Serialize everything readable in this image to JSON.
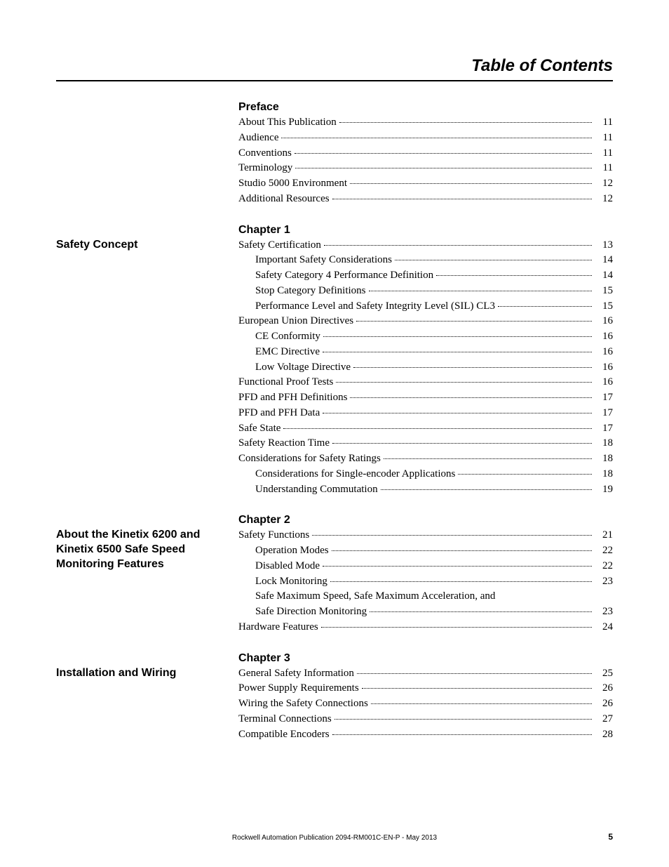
{
  "page_title": "Table of Contents",
  "sections": [
    {
      "heading": "Preface",
      "side": "",
      "entries": [
        {
          "label": "About This Publication",
          "page": "11",
          "indent": 0
        },
        {
          "label": "Audience",
          "page": "11",
          "indent": 0
        },
        {
          "label": "Conventions",
          "page": "11",
          "indent": 0
        },
        {
          "label": "Terminology",
          "page": "11",
          "indent": 0
        },
        {
          "label": "Studio 5000 Environment",
          "page": "12",
          "indent": 0
        },
        {
          "label": "Additional Resources",
          "page": "12",
          "indent": 0
        }
      ]
    },
    {
      "heading": "Chapter 1",
      "side": "Safety Concept",
      "entries": [
        {
          "label": "Safety Certification",
          "page": "13",
          "indent": 0
        },
        {
          "label": "Important Safety Considerations",
          "page": "14",
          "indent": 1
        },
        {
          "label": "Safety Category 4 Performance Definition",
          "page": "14",
          "indent": 1
        },
        {
          "label": "Stop Category Definitions",
          "page": "15",
          "indent": 1
        },
        {
          "label": "Performance Level and Safety Integrity Level (SIL) CL3",
          "page": "15",
          "indent": 1
        },
        {
          "label": "European Union Directives",
          "page": "16",
          "indent": 0
        },
        {
          "label": "CE Conformity",
          "page": "16",
          "indent": 1
        },
        {
          "label": "EMC Directive",
          "page": "16",
          "indent": 1
        },
        {
          "label": "Low Voltage Directive",
          "page": "16",
          "indent": 1
        },
        {
          "label": "Functional Proof Tests",
          "page": "16",
          "indent": 0
        },
        {
          "label": "PFD and PFH Definitions",
          "page": "17",
          "indent": 0
        },
        {
          "label": "PFD and PFH Data",
          "page": "17",
          "indent": 0
        },
        {
          "label": "Safe State",
          "page": "17",
          "indent": 0
        },
        {
          "label": "Safety Reaction Time",
          "page": "18",
          "indent": 0
        },
        {
          "label": "Considerations for Safety Ratings",
          "page": "18",
          "indent": 0
        },
        {
          "label": "Considerations for Single-encoder Applications",
          "page": "18",
          "indent": 1
        },
        {
          "label": "Understanding Commutation",
          "page": "19",
          "indent": 1
        }
      ]
    },
    {
      "heading": "Chapter 2",
      "side": "About the Kinetix 6200 and Kinetix 6500 Safe Speed Monitoring Features",
      "entries": [
        {
          "label": "Safety Functions",
          "page": "21",
          "indent": 0
        },
        {
          "label": "Operation Modes",
          "page": "22",
          "indent": 1
        },
        {
          "label": "Disabled Mode",
          "page": "22",
          "indent": 1
        },
        {
          "label": "Lock Monitoring",
          "page": "23",
          "indent": 1
        },
        {
          "label": "Safe Maximum Speed, Safe Maximum Acceleration, and",
          "page": "",
          "indent": 1,
          "nowrap_off": true
        },
        {
          "label": "Safe Direction Monitoring",
          "page": "23",
          "indent": 1
        },
        {
          "label": "Hardware Features",
          "page": "24",
          "indent": 0
        }
      ]
    },
    {
      "heading": "Chapter 3",
      "side": "Installation and Wiring",
      "entries": [
        {
          "label": "General Safety Information",
          "page": "25",
          "indent": 0
        },
        {
          "label": "Power Supply Requirements",
          "page": "26",
          "indent": 0
        },
        {
          "label": "Wiring the Safety Connections",
          "page": "26",
          "indent": 0
        },
        {
          "label": "Terminal Connections",
          "page": "27",
          "indent": 0
        },
        {
          "label": "Compatible Encoders",
          "page": "28",
          "indent": 0
        }
      ]
    }
  ],
  "footer_pub": "Rockwell Automation Publication 2094-RM001C-EN-P - May 2013",
  "footer_page": "5"
}
